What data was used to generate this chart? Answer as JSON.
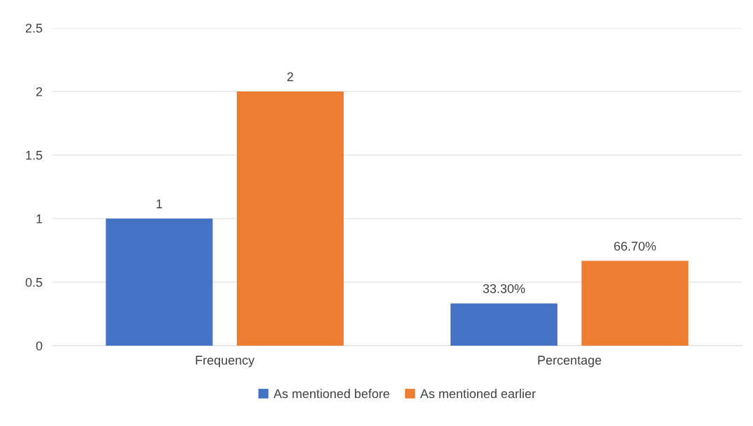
{
  "chart_data": {
    "type": "bar",
    "categories": [
      "Frequency",
      "Percentage"
    ],
    "series": [
      {
        "name": "As mentioned before",
        "color": "#4472c4",
        "values": [
          1,
          0.333
        ],
        "value_labels": [
          "1",
          "33.30%"
        ]
      },
      {
        "name": "As mentioned earlier",
        "color": "#ed7d31",
        "values": [
          2,
          0.667
        ],
        "value_labels": [
          "2",
          "66.70%"
        ]
      }
    ],
    "ylim": [
      0,
      2.5
    ],
    "yticks": [
      0,
      0.5,
      1,
      1.5,
      2,
      2.5
    ],
    "grid": "y",
    "legend": "bottom"
  }
}
